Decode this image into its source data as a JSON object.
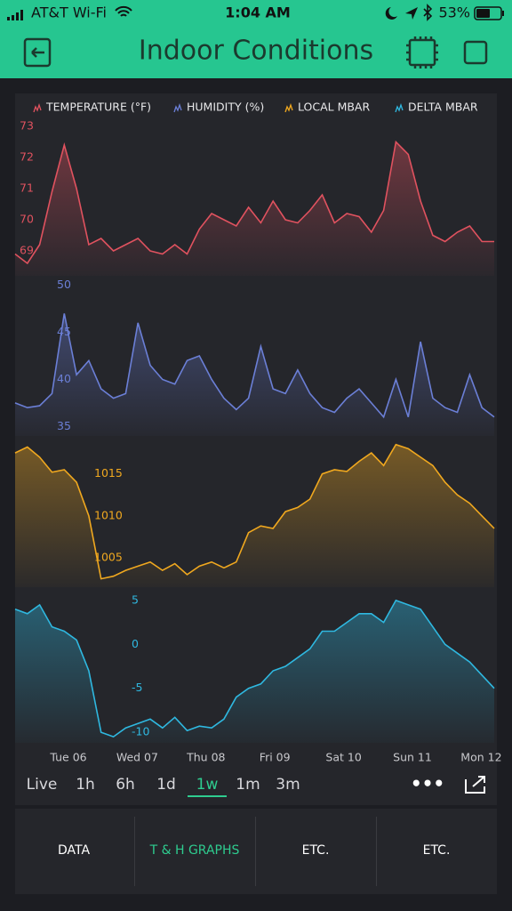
{
  "status_bar": {
    "carrier": "AT&T Wi-Fi",
    "time": "1:04 AM",
    "battery": "53%"
  },
  "header": {
    "title": "Indoor Conditions"
  },
  "chart_data": {
    "type": "line",
    "xticks": [
      "Tue 06",
      "Wed 07",
      "Thu 08",
      "Fri 09",
      "Sat 10",
      "Sun 11",
      "Mon 12"
    ],
    "series": [
      {
        "name": "TEMPERATURE (°F)",
        "color": "#e0525f",
        "ylim": [
          68.2,
          73.2
        ],
        "yticks": [
          73,
          72,
          71,
          70,
          69
        ],
        "values": [
          68.9,
          68.6,
          69.2,
          70.9,
          72.4,
          71.0,
          69.2,
          69.4,
          69.0,
          69.2,
          69.4,
          69.0,
          68.9,
          69.2,
          68.9,
          69.7,
          70.2,
          70.0,
          69.8,
          70.4,
          69.9,
          70.6,
          70.0,
          69.9,
          70.3,
          70.8,
          69.9,
          70.2,
          70.1,
          69.6,
          70.3,
          72.5,
          72.1,
          70.6,
          69.5,
          69.3,
          69.6,
          69.8,
          69.3,
          69.3
        ]
      },
      {
        "name": "HUMIDITY (%)",
        "color": "#6b7fd6",
        "ylim": [
          34,
          51
        ],
        "yticks": [
          50,
          45,
          40,
          35
        ],
        "values": [
          37.5,
          37.0,
          37.2,
          38.5,
          47.0,
          40.5,
          42.0,
          39.0,
          38.0,
          38.5,
          46.0,
          41.5,
          40.0,
          39.5,
          42.0,
          42.5,
          40.0,
          38.0,
          36.8,
          38.0,
          43.5,
          39.0,
          38.5,
          41.0,
          38.5,
          37.0,
          36.5,
          38.0,
          39.0,
          37.5,
          36.0,
          40.0,
          36.0,
          44.0,
          38.0,
          37.0,
          36.5,
          40.5,
          37.0,
          36.0
        ]
      },
      {
        "name": "LOCAL MBAR",
        "color": "#f0a81f",
        "ylim": [
          1001.5,
          1019
        ],
        "yticks": [
          1015,
          1010,
          1005
        ],
        "values": [
          1017.5,
          1018.2,
          1017.0,
          1015.2,
          1015.5,
          1014.0,
          1010.0,
          1002.5,
          1002.8,
          1003.5,
          1004.0,
          1004.5,
          1003.5,
          1004.3,
          1003.0,
          1004.0,
          1004.5,
          1003.8,
          1004.5,
          1008.0,
          1008.8,
          1008.5,
          1010.5,
          1011.0,
          1012.0,
          1015.0,
          1015.5,
          1015.3,
          1016.5,
          1017.5,
          1016.0,
          1018.5,
          1018.0,
          1017.0,
          1016.0,
          1014.0,
          1012.5,
          1011.5,
          1010.0,
          1008.5
        ]
      },
      {
        "name": "DELTA MBAR",
        "color": "#2fb8e0",
        "ylim": [
          -11.2,
          5.5
        ],
        "yticks": [
          5,
          0,
          -5,
          -10
        ],
        "values": [
          4.0,
          3.5,
          4.5,
          2.0,
          1.5,
          0.5,
          -3,
          -10,
          -10.5,
          -9.5,
          -9.0,
          -8.5,
          -9.5,
          -8.3,
          -9.8,
          -9.3,
          -9.5,
          -8.5,
          -6.0,
          -5.0,
          -4.5,
          -3.0,
          -2.5,
          -1.5,
          -0.5,
          1.5,
          1.5,
          2.5,
          3.5,
          3.5,
          2.5,
          5.0,
          4.5,
          4.0,
          2.0,
          0.0,
          -1.0,
          -2.0,
          -3.5,
          -5.0
        ]
      }
    ]
  },
  "time_ranges": {
    "options": [
      "Live",
      "1h",
      "6h",
      "1d",
      "1w",
      "1m",
      "3m"
    ],
    "selected": 4
  },
  "tabs": {
    "items": [
      "DATA",
      "T & H GRAPHS",
      "ETC.",
      "ETC."
    ],
    "active": 1
  }
}
